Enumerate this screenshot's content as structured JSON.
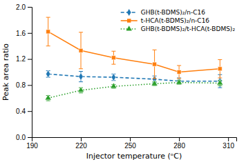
{
  "chart_data": {
    "type": "line",
    "xlabel": "Injector temperature (ᵒC)",
    "ylabel": "Peak area ratio",
    "x": [
      200,
      220,
      240,
      265,
      280,
      305
    ],
    "series": [
      {
        "name": "GHB(t-BDMS)₂/n-C16",
        "marker": "diamond",
        "line_style": "dashed",
        "values": [
          0.97,
          0.93,
          0.92,
          0.89,
          0.86,
          0.86
        ],
        "yerr": [
          0.05,
          0.08,
          0.05,
          0.05,
          0.05,
          0.1
        ]
      },
      {
        "name": "t-HCA(t-BDMS)₂/n-C16",
        "marker": "square",
        "line_style": "solid",
        "values": [
          1.62,
          1.33,
          1.22,
          1.12,
          1.0,
          1.05
        ],
        "yerr": [
          0.22,
          0.28,
          0.1,
          0.22,
          0.1,
          0.14
        ]
      },
      {
        "name": "GHB(t-BDMS)₂/t-HCA(t-BDMS)₂",
        "marker": "triangle",
        "line_style": "dotted",
        "values": [
          0.6,
          0.72,
          0.78,
          0.82,
          0.84,
          0.83
        ],
        "yerr": [
          0.04,
          0.04,
          0.03,
          0.03,
          0.03,
          0.04
        ]
      }
    ],
    "xlim": [
      190,
      315
    ],
    "ylim": [
      0.0,
      2.0
    ],
    "xticks": [
      190,
      220,
      250,
      280,
      310
    ],
    "yticks": [
      {
        "value": 0.0,
        "label": "0.0"
      },
      0.4,
      0.8,
      1.2,
      1.6,
      {
        "value": 2.0,
        "label": "2.0"
      }
    ],
    "legend": "upper right",
    "grid": false
  }
}
